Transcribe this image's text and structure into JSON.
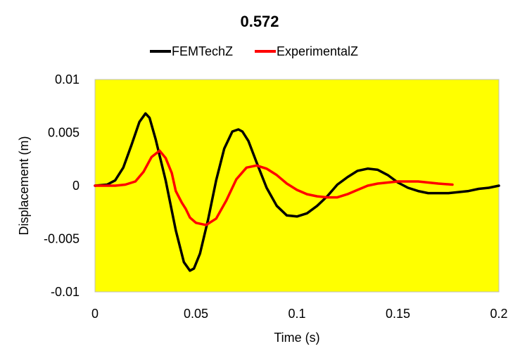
{
  "chart_data": {
    "type": "line",
    "title": "0.572",
    "xlabel": "Time (s)",
    "ylabel": "Displacement (m)",
    "xlim": [
      0,
      0.2
    ],
    "ylim": [
      -0.01,
      0.01
    ],
    "xticks": [
      "0",
      "0.05",
      "0.1",
      "0.15",
      "0.2"
    ],
    "yticks": [
      "0.01",
      "0.005",
      "0",
      "-0.005",
      "-0.01"
    ],
    "xtick_values": [
      0,
      0.05,
      0.1,
      0.15,
      0.2
    ],
    "ytick_values": [
      0.01,
      0.005,
      0,
      -0.005,
      -0.01
    ],
    "grid": false,
    "legend": "top",
    "plot_background": "#ffff00",
    "series": [
      {
        "name": "FEMTechZ",
        "color": "#000000",
        "x": [
          0,
          0.006,
          0.01,
          0.014,
          0.018,
          0.022,
          0.025,
          0.027,
          0.03,
          0.035,
          0.04,
          0.044,
          0.047,
          0.049,
          0.052,
          0.056,
          0.06,
          0.064,
          0.068,
          0.071,
          0.073,
          0.076,
          0.08,
          0.085,
          0.09,
          0.095,
          0.1,
          0.105,
          0.11,
          0.115,
          0.12,
          0.125,
          0.13,
          0.135,
          0.14,
          0.145,
          0.15,
          0.155,
          0.16,
          0.165,
          0.17,
          0.175,
          0.18,
          0.185,
          0.19,
          0.195,
          0.2
        ],
        "y": [
          0,
          0.0001,
          0.0005,
          0.0017,
          0.0038,
          0.006,
          0.0068,
          0.0064,
          0.0044,
          0.0005,
          -0.0042,
          -0.0072,
          -0.008,
          -0.0078,
          -0.0064,
          -0.0032,
          0.0005,
          0.0035,
          0.0051,
          0.0053,
          0.0051,
          0.0042,
          0.0022,
          -0.0002,
          -0.0019,
          -0.0028,
          -0.0029,
          -0.0026,
          -0.0019,
          -0.001,
          0.0001,
          0.0008,
          0.0014,
          0.0016,
          0.0015,
          0.001,
          0.0003,
          -0.0002,
          -0.0005,
          -0.0007,
          -0.0007,
          -0.0007,
          -0.0006,
          -0.0005,
          -0.0003,
          -0.0002,
          0
        ]
      },
      {
        "name": "ExperimentalZ",
        "color": "#ff0000",
        "x": [
          0,
          0.005,
          0.01,
          0.015,
          0.02,
          0.024,
          0.028,
          0.032,
          0.035,
          0.038,
          0.04,
          0.043,
          0.045,
          0.047,
          0.05,
          0.055,
          0.06,
          0.065,
          0.07,
          0.075,
          0.08,
          0.085,
          0.09,
          0.095,
          0.1,
          0.105,
          0.11,
          0.115,
          0.12,
          0.125,
          0.13,
          0.135,
          0.14,
          0.145,
          0.15,
          0.155,
          0.16,
          0.165,
          0.17,
          0.177
        ],
        "y": [
          0,
          0,
          0,
          0.0001,
          0.0004,
          0.0013,
          0.0027,
          0.0033,
          0.0026,
          0.0012,
          -0.0005,
          -0.0016,
          -0.0022,
          -0.003,
          -0.0035,
          -0.0037,
          -0.0031,
          -0.0014,
          0.0006,
          0.0017,
          0.0019,
          0.0016,
          0.001,
          0.0002,
          -0.0004,
          -0.0008,
          -0.001,
          -0.0011,
          -0.0011,
          -0.0008,
          -0.0004,
          0,
          0.0002,
          0.0003,
          0.0004,
          0.0004,
          0.0004,
          0.0003,
          0.0002,
          0.0001
        ]
      }
    ]
  }
}
